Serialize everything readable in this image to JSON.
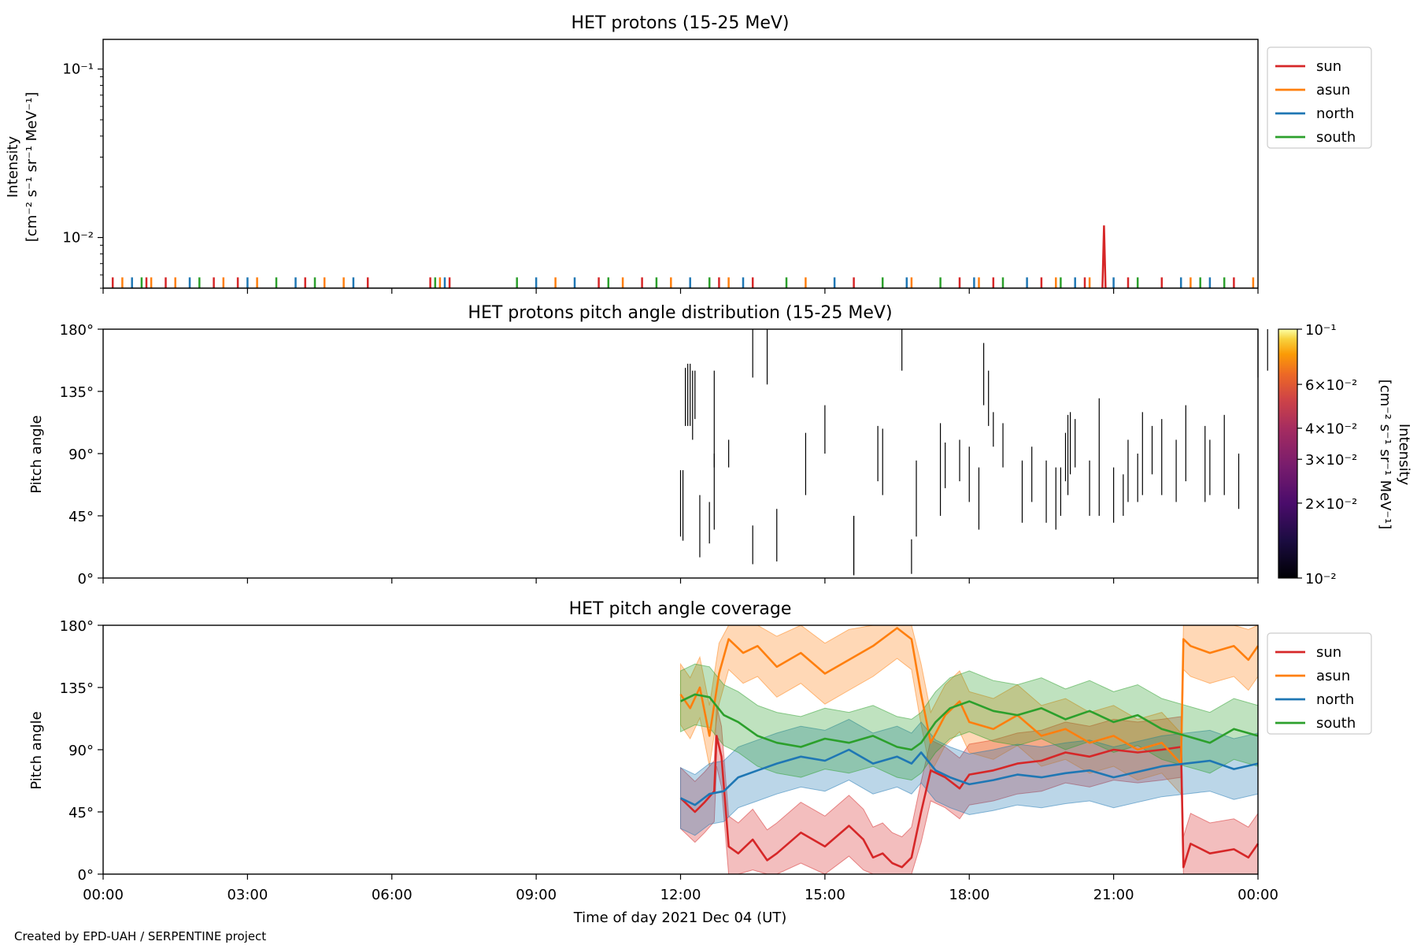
{
  "figure": {
    "credit": "Created by EPD-UAH / SERPENTINE project",
    "xlabel": "Time of day 2021 Dec 04 (UT)",
    "xticks": [
      "00:00",
      "03:00",
      "06:00",
      "09:00",
      "12:00",
      "15:00",
      "18:00",
      "21:00",
      "00:00"
    ]
  },
  "colors": {
    "sun": "#d62728",
    "asun": "#ff7f0e",
    "north": "#1f77b4",
    "south": "#2ca02c"
  },
  "chart_data": [
    {
      "type": "line",
      "title": "HET protons (15-25 MeV)",
      "ylabel_line1": "Intensity",
      "ylabel_line2": "[cm⁻² s⁻¹ sr⁻¹ MeV⁻¹]",
      "yscale": "log",
      "ylim": [
        0.005,
        0.15
      ],
      "ytick_labels": [
        "10⁻²",
        "10⁻¹"
      ],
      "ytick_values": [
        0.01,
        0.1
      ],
      "xlim_hours": [
        0,
        24
      ],
      "legend": [
        "sun",
        "asun",
        "north",
        "south"
      ],
      "legend_position": "upper-right-outside",
      "baseline": 0.005,
      "spike_height": 0.0058,
      "spikes": {
        "sun": [
          0.2,
          0.9,
          1.3,
          2.3,
          2.8,
          4.2,
          5.5,
          6.8,
          7.2,
          10.3,
          11.2,
          12.8,
          13.5,
          15.6,
          17.8,
          18.5,
          19.5,
          20.4,
          21.3,
          22.0,
          23.5
        ],
        "asun": [
          0.4,
          1.0,
          1.5,
          2.5,
          3.2,
          4.6,
          5.0,
          7.0,
          9.4,
          10.8,
          11.8,
          13.0,
          14.6,
          16.8,
          18.2,
          19.8,
          20.5,
          22.6,
          23.9
        ],
        "north": [
          0.6,
          1.8,
          3.0,
          4.0,
          5.2,
          7.1,
          9.0,
          9.8,
          12.2,
          13.3,
          15.2,
          16.7,
          18.1,
          19.2,
          20.2,
          21.0,
          22.4,
          23.0
        ],
        "south": [
          0.8,
          2.0,
          3.6,
          4.4,
          6.9,
          8.6,
          10.5,
          11.5,
          12.6,
          14.2,
          16.2,
          17.4,
          18.7,
          19.9,
          21.5,
          22.8,
          23.3
        ]
      },
      "sun_peak": {
        "x": 20.8,
        "y": 0.0118
      }
    },
    {
      "type": "heatmap",
      "title": "HET protons pitch angle distribution (15-25 MeV)",
      "ylabel": "Pitch angle",
      "ylim": [
        0,
        180
      ],
      "ytick_labels": [
        "0°",
        "45°",
        "90°",
        "135°",
        "180°"
      ],
      "ytick_values": [
        0,
        45,
        90,
        135,
        180
      ],
      "xlim_hours": [
        0,
        24
      ],
      "colorbar": {
        "label_line1": "Intensity",
        "label_line2": "[cm⁻² s⁻¹ sr⁻¹ MeV⁻¹]",
        "scale": "log",
        "range": [
          0.01,
          0.1
        ],
        "colormap": "inferno",
        "tick_labels": [
          "10⁻²",
          "2×10⁻²",
          "3×10⁻²",
          "4×10⁻²",
          "6×10⁻²",
          "10⁻¹"
        ],
        "tick_values": [
          0.01,
          0.02,
          0.03,
          0.04,
          0.06,
          0.1
        ]
      },
      "segments": [
        [
          12.0,
          30,
          78
        ],
        [
          12.05,
          27,
          78
        ],
        [
          12.1,
          110,
          152
        ],
        [
          12.15,
          110,
          155
        ],
        [
          12.2,
          110,
          155
        ],
        [
          12.25,
          100,
          150
        ],
        [
          12.3,
          115,
          150
        ],
        [
          12.4,
          15,
          60
        ],
        [
          12.6,
          25,
          55
        ],
        [
          12.7,
          35,
          90
        ],
        [
          12.7,
          80,
          150
        ],
        [
          13.0,
          80,
          100
        ],
        [
          13.5,
          10,
          38
        ],
        [
          13.5,
          145,
          180
        ],
        [
          13.8,
          140,
          180
        ],
        [
          14.0,
          12,
          50
        ],
        [
          14.6,
          60,
          105
        ],
        [
          15.0,
          90,
          125
        ],
        [
          15.6,
          2,
          45
        ],
        [
          15.6,
          2,
          45
        ],
        [
          16.1,
          70,
          110
        ],
        [
          16.2,
          60,
          108
        ],
        [
          16.6,
          150,
          180
        ],
        [
          16.8,
          3,
          28
        ],
        [
          16.9,
          30,
          85
        ],
        [
          17.4,
          45,
          112
        ],
        [
          17.5,
          65,
          98
        ],
        [
          17.8,
          70,
          100
        ],
        [
          18.0,
          55,
          95
        ],
        [
          18.2,
          35,
          80
        ],
        [
          18.3,
          125,
          170
        ],
        [
          18.4,
          110,
          150
        ],
        [
          18.5,
          95,
          120
        ],
        [
          18.7,
          80,
          112
        ],
        [
          19.1,
          40,
          85
        ],
        [
          19.3,
          55,
          95
        ],
        [
          19.6,
          40,
          85
        ],
        [
          19.8,
          35,
          80
        ],
        [
          19.9,
          45,
          80
        ],
        [
          20.0,
          70,
          105
        ],
        [
          20.05,
          60,
          118
        ],
        [
          20.1,
          75,
          120
        ],
        [
          20.2,
          80,
          115
        ],
        [
          20.5,
          45,
          85
        ],
        [
          20.7,
          45,
          130
        ],
        [
          21.0,
          40,
          80
        ],
        [
          21.2,
          45,
          75
        ],
        [
          21.3,
          55,
          100
        ],
        [
          21.5,
          55,
          90
        ],
        [
          21.6,
          60,
          120
        ],
        [
          21.8,
          75,
          110
        ],
        [
          22.0,
          60,
          115
        ],
        [
          22.3,
          55,
          100
        ],
        [
          22.5,
          70,
          125
        ],
        [
          22.9,
          55,
          110
        ],
        [
          23.0,
          60,
          100
        ],
        [
          23.3,
          60,
          118
        ],
        [
          23.6,
          50,
          90
        ],
        [
          24.0,
          145,
          180
        ],
        [
          24.2,
          150,
          180
        ]
      ]
    },
    {
      "type": "area",
      "title": "HET pitch angle coverage",
      "ylabel": "Pitch angle",
      "ylim": [
        0,
        180
      ],
      "ytick_labels": [
        "0°",
        "45°",
        "90°",
        "135°",
        "180°"
      ],
      "ytick_values": [
        0,
        45,
        90,
        135,
        180
      ],
      "xlim_hours": [
        0,
        24
      ],
      "legend": [
        "sun",
        "asun",
        "north",
        "south"
      ],
      "legend_position": "upper-right-outside",
      "band_half_width": 22,
      "series": [
        {
          "name": "sun",
          "x": [
            12.0,
            12.3,
            12.5,
            12.7,
            12.75,
            12.85,
            13.0,
            13.2,
            13.5,
            13.8,
            14.0,
            14.5,
            15.0,
            15.5,
            15.8,
            16.0,
            16.2,
            16.4,
            16.6,
            16.8,
            17.0,
            17.2,
            17.5,
            17.8,
            18.0,
            18.5,
            19.0,
            19.5,
            20.0,
            20.5,
            21.0,
            21.5,
            22.0,
            22.4,
            22.45,
            22.6,
            23.0,
            23.5,
            23.8,
            24.0
          ],
          "y": [
            55,
            45,
            52,
            60,
            100,
            85,
            20,
            15,
            25,
            10,
            15,
            30,
            20,
            35,
            25,
            12,
            15,
            8,
            5,
            12,
            45,
            75,
            70,
            62,
            72,
            75,
            80,
            82,
            88,
            85,
            90,
            88,
            90,
            92,
            5,
            22,
            15,
            18,
            12,
            22
          ]
        },
        {
          "name": "asun",
          "x": [
            12.0,
            12.2,
            12.4,
            12.6,
            12.8,
            13.0,
            13.3,
            13.6,
            14.0,
            14.5,
            15.0,
            15.5,
            16.0,
            16.5,
            16.8,
            17.0,
            17.2,
            17.5,
            17.8,
            18.0,
            18.5,
            19.0,
            19.5,
            20.0,
            20.5,
            21.0,
            21.5,
            22.0,
            22.4,
            22.45,
            22.6,
            23.0,
            23.5,
            23.8,
            24.0
          ],
          "y": [
            130,
            120,
            135,
            100,
            145,
            170,
            160,
            165,
            150,
            160,
            145,
            155,
            165,
            178,
            170,
            130,
            95,
            115,
            125,
            110,
            105,
            115,
            100,
            105,
            95,
            100,
            90,
            95,
            80,
            170,
            165,
            160,
            165,
            155,
            165
          ]
        },
        {
          "name": "north",
          "x": [
            12.0,
            12.3,
            12.6,
            12.9,
            13.2,
            13.6,
            14.0,
            14.5,
            15.0,
            15.5,
            16.0,
            16.5,
            16.8,
            17.0,
            17.3,
            17.6,
            18.0,
            18.5,
            19.0,
            19.5,
            20.0,
            20.5,
            21.0,
            21.5,
            22.0,
            22.5,
            23.0,
            23.5,
            24.0
          ],
          "y": [
            55,
            50,
            58,
            60,
            70,
            75,
            80,
            85,
            82,
            90,
            80,
            85,
            80,
            88,
            75,
            70,
            65,
            68,
            72,
            70,
            73,
            75,
            70,
            74,
            78,
            80,
            82,
            76,
            80
          ]
        },
        {
          "name": "south",
          "x": [
            12.0,
            12.3,
            12.6,
            12.9,
            13.2,
            13.6,
            14.0,
            14.5,
            15.0,
            15.5,
            16.0,
            16.5,
            16.8,
            17.0,
            17.3,
            17.6,
            18.0,
            18.5,
            19.0,
            19.5,
            20.0,
            20.5,
            21.0,
            21.5,
            22.0,
            22.5,
            23.0,
            23.5,
            24.0
          ],
          "y": [
            125,
            130,
            128,
            115,
            110,
            100,
            95,
            92,
            98,
            95,
            100,
            92,
            90,
            95,
            110,
            120,
            125,
            118,
            115,
            120,
            112,
            118,
            110,
            115,
            105,
            100,
            95,
            105,
            100
          ]
        }
      ]
    }
  ]
}
